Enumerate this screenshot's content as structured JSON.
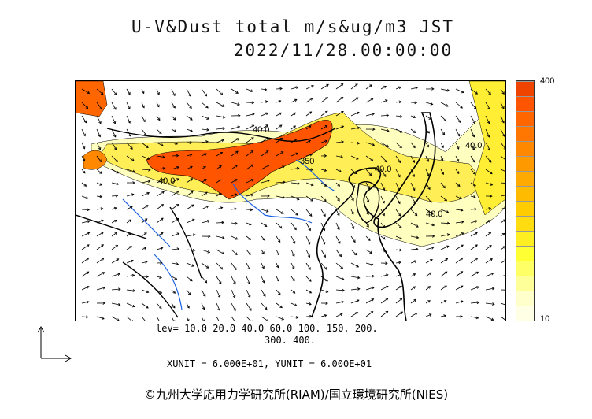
{
  "header": {
    "title_line1": "U-V&Dust  total  m/s&ug/m3 JST",
    "title_line2": "2022/11/28.00:00:00"
  },
  "colorbar": {
    "max_label": "400",
    "min_label": "10",
    "colors": [
      "#ffffe6",
      "#ffffcc",
      "#ffff99",
      "#ffff66",
      "#ffff33",
      "#ffee22",
      "#ffdd11",
      "#ffcc00",
      "#ffbb00",
      "#ffaa00",
      "#ff9900",
      "#ff8800",
      "#ff7700",
      "#ff6600",
      "#ff5500",
      "#ee4400"
    ]
  },
  "legend": {
    "levels_line1": "lev=  10.0  20.0  40.0  60.0  100.  150.  200.",
    "levels_line2": "300.  400.",
    "units": "XUNIT = 6.000E+01, YUNIT = 6.000E+01"
  },
  "contour_labels": [
    "40.0",
    "350",
    "40.0",
    "40.0",
    "40.0",
    "40.0"
  ],
  "footer": {
    "copyright": "©九州大学応用力学研究所(RIAM)/国立環境研究所(NIES)"
  }
}
